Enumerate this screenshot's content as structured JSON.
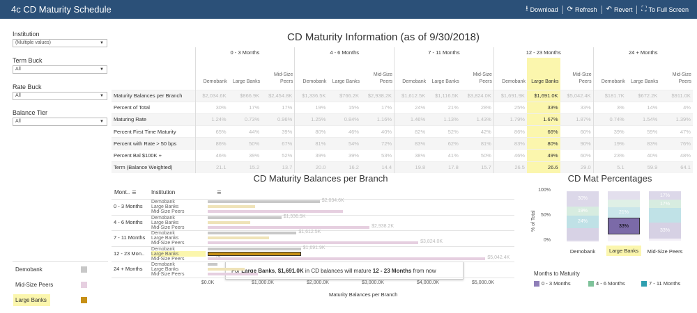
{
  "app": {
    "title": "4c CD Maturity Schedule",
    "toolbar": [
      {
        "label": "Download",
        "icon": "download-icon",
        "glyph": "⭳"
      },
      {
        "label": "Refresh",
        "icon": "refresh-icon",
        "glyph": "⟳"
      },
      {
        "label": "Revert",
        "icon": "revert-icon",
        "glyph": "↶"
      },
      {
        "label": "To Full Screen",
        "icon": "fullscreen-icon",
        "glyph": "⛶"
      }
    ]
  },
  "filters": [
    {
      "label": "Institution",
      "value": "(Multiple values)"
    },
    {
      "label": "Term Buck",
      "value": "All"
    },
    {
      "label": "Rate Buck",
      "value": "All"
    },
    {
      "label": "Balance Tier",
      "value": "All"
    }
  ],
  "legend": [
    {
      "label": "Demobank",
      "color": "#c8c8c8"
    },
    {
      "label": "Mid-Size Peers",
      "color": "#e6cfe0"
    },
    {
      "label": "Large Banks",
      "color": "#c79016"
    }
  ],
  "info_table": {
    "title": "CD Maturity Information (as of 9/30/2018)",
    "groups": [
      "0 - 3 Months",
      "4 - 6 Months",
      "7 - 11 Months",
      "12 - 23 Months",
      "24 + Months"
    ],
    "subcols": [
      "Demobank",
      "Large Banks",
      "Mid-Size Peers"
    ],
    "rows": [
      {
        "label": "Maturity Balances per Branch",
        "cells": [
          "$2,034.6K",
          "$866.9K",
          "$2,454.8K",
          "$1,336.5K",
          "$766.2K",
          "$2,938.2K",
          "$1,612.5K",
          "$1,116.5K",
          "$3,824.0K",
          "$1,691.9K",
          "$1,691.0K",
          "$5,042.4K",
          "$181.7K",
          "$672.2K",
          "$911.0K"
        ]
      },
      {
        "label": "Percent of Total",
        "cells": [
          "30%",
          "17%",
          "17%",
          "19%",
          "15%",
          "17%",
          "24%",
          "21%",
          "28%",
          "25%",
          "33%",
          "33%",
          "3%",
          "14%",
          "4%"
        ]
      },
      {
        "label": "Maturing Rate",
        "cells": [
          "1.24%",
          "0.73%",
          "0.96%",
          "1.25%",
          "0.84%",
          "1.16%",
          "1.46%",
          "1.13%",
          "1.43%",
          "1.79%",
          "1.67%",
          "1.87%",
          "0.74%",
          "1.54%",
          "1.39%"
        ]
      },
      {
        "label": "Percent First Time Maturity",
        "cells": [
          "65%",
          "44%",
          "39%",
          "80%",
          "46%",
          "40%",
          "82%",
          "52%",
          "42%",
          "86%",
          "66%",
          "60%",
          "39%",
          "59%",
          "47%"
        ]
      },
      {
        "label": "Percent with Rate > 50 bps",
        "cells": [
          "86%",
          "50%",
          "67%",
          "81%",
          "54%",
          "72%",
          "83%",
          "62%",
          "81%",
          "83%",
          "80%",
          "90%",
          "19%",
          "83%",
          "76%"
        ]
      },
      {
        "label": "Percent Bal $100K +",
        "cells": [
          "46%",
          "39%",
          "52%",
          "39%",
          "39%",
          "53%",
          "38%",
          "41%",
          "50%",
          "46%",
          "49%",
          "60%",
          "23%",
          "40%",
          "48%"
        ]
      },
      {
        "label": "Term (Balance Weighted)",
        "cells": [
          "21.1",
          "15.2",
          "13.7",
          "20.0",
          "16.2",
          "14.4",
          "19.8",
          "17.8",
          "15.7",
          "26.5",
          "26.6",
          "29.0",
          "5.1",
          "59.9",
          "64.1"
        ]
      }
    ]
  },
  "bar_section": {
    "title": "CD Maturity Balances per Branch",
    "col_month": "Mont..",
    "col_institution": "Institution",
    "xlabel": "Maturity Balances per Branch",
    "tooltip": {
      "pre": "For ",
      "inst": "Large Banks",
      "mid1": ", ",
      "amt": "$1,691.0K",
      "mid2": " in CD balances will mature ",
      "term": "12 - 23 Months",
      "post": " from now"
    }
  },
  "chart_data": [
    {
      "type": "bar",
      "title": "CD Maturity Balances per Branch",
      "xlabel": "Maturity Balances per Branch",
      "categories": [
        "0 - 3 Months",
        "4 - 6 Months",
        "7 - 11 Months",
        "12 - 23 Mon..",
        "24 + Months"
      ],
      "institutions": [
        "Demobank",
        "Large Banks",
        "Mid-Size Peers"
      ],
      "series": [
        {
          "name": "Demobank",
          "values": [
            2034.6,
            1336.5,
            1612.5,
            1691.9,
            181.7
          ],
          "labels": [
            "$2,034.6K",
            "$1,336.5K",
            "$1,612.5K",
            "$1,691.9K",
            ""
          ]
        },
        {
          "name": "Large Banks",
          "values": [
            866.9,
            766.2,
            1116.5,
            1691.0,
            672.2
          ],
          "labels": [
            "",
            "",
            "",
            "",
            ""
          ]
        },
        {
          "name": "Mid-Size Peers",
          "values": [
            2454.8,
            2938.2,
            3824.0,
            5042.4,
            911.0
          ],
          "labels": [
            "",
            "$2,938.2K",
            "$3,824.0K",
            "$5,042.4K",
            ""
          ]
        }
      ],
      "xticks": [
        "$0.0K",
        "$1,000.0K",
        "$2,000.0K",
        "$3,000.0K",
        "$4,000.0K",
        "$5,000.0K"
      ],
      "xlim": [
        0,
        5000
      ],
      "highlight": {
        "category": "12 - 23 Mon..",
        "series": "Large Banks"
      }
    },
    {
      "type": "bar",
      "stacked": true,
      "title": "CD Mat Percentages",
      "ylabel": "% of Total",
      "yticks": [
        "100%",
        "50%",
        "0%"
      ],
      "categories": [
        "Demobank",
        "Large Banks",
        "Mid-Size Peers"
      ],
      "highlight_category": "Large Banks",
      "segments": [
        {
          "series": "0 - 3 Months",
          "color": "#8f7fb8",
          "values": [
            30,
            17,
            17
          ]
        },
        {
          "series": "4 - 6 Months",
          "color": "#7ec29a",
          "values": [
            19,
            15,
            17
          ]
        },
        {
          "series": "7 - 11 Months",
          "color": "#2f9fb0",
          "values": [
            24,
            21,
            28
          ]
        },
        {
          "series": "12 - 23 Months",
          "color": "#7b6aa8",
          "values": [
            25,
            33,
            33
          ]
        },
        {
          "series": "24 + Months",
          "color": "#d7cde4",
          "values": [
            3,
            14,
            4
          ]
        }
      ],
      "printed_labels": [
        [
          "30%",
          "19%",
          "24%",
          "",
          ""
        ],
        [
          "",
          "",
          "21%",
          "33%",
          ""
        ],
        [
          "17%",
          "17%",
          "",
          "33%",
          ""
        ]
      ],
      "legend_title": "Months to Maturity",
      "legend": [
        "0 - 3 Months",
        "4 - 6 Months",
        "7 - 11 Months"
      ]
    }
  ],
  "colors": {
    "header": "#2b5078",
    "highlight": "#fbf6ad",
    "demobank": "#c8c8c8",
    "large_banks": "#efe3b8",
    "large_banks_active": "#c79016",
    "mid_size": "#e6cfe0"
  }
}
